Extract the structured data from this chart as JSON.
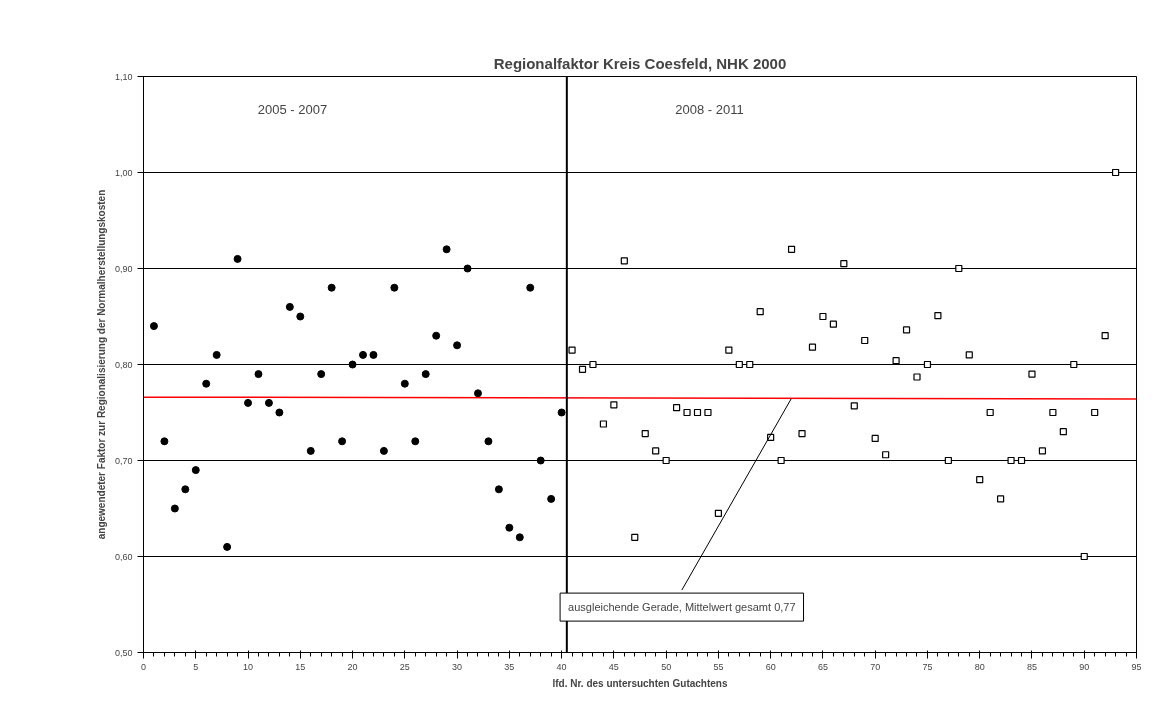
{
  "chart_data": {
    "type": "scatter",
    "title": "Regionalfaktor Kreis Coesfeld, NHK 2000",
    "xlabel": "lfd. Nr. des untersuchten Gutachtens",
    "ylabel": "angewendeter Faktor zur Regionalisierung der Normalherstellungskosten",
    "series": [
      {
        "color": "#000000",
        "marker": "circle",
        "x": [
          1,
          2,
          3,
          4,
          5,
          6,
          7,
          8,
          9,
          10,
          11,
          12,
          13,
          14,
          15,
          16,
          17,
          18,
          19,
          20,
          21,
          22,
          23,
          24,
          25,
          26,
          27,
          28,
          29,
          30,
          31,
          32,
          33,
          34,
          35,
          36,
          37,
          38,
          39,
          40
        ],
        "values": [
          0.84,
          0.72,
          0.65,
          0.67,
          0.69,
          0.78,
          0.81,
          0.61,
          0.91,
          0.76,
          0.79,
          0.76,
          0.75,
          0.86,
          0.85,
          0.71,
          0.79,
          0.88,
          0.72,
          0.8,
          0.81,
          0.81,
          0.71,
          0.88,
          0.78,
          0.72,
          0.79,
          0.83,
          0.92,
          0.82,
          0.9,
          0.77,
          0.72,
          0.67,
          0.63,
          0.62,
          0.88,
          0.7,
          0.66,
          0.75
        ]
      },
      {
        "color": "#000000",
        "marker": "square",
        "x": [
          41,
          42,
          43,
          44,
          45,
          46,
          47,
          48,
          49,
          50,
          51,
          52,
          53,
          54,
          55,
          56,
          57,
          58,
          59,
          60,
          61,
          62,
          63,
          64,
          65,
          66,
          67,
          68,
          69,
          70,
          71,
          72,
          73,
          74,
          75,
          76,
          77,
          78,
          79,
          80,
          81,
          82,
          83,
          84,
          85,
          86,
          87,
          88,
          89,
          90,
          91,
          92,
          93
        ],
        "values": [
          0.815,
          0.795,
          0.8,
          0.738,
          0.758,
          0.908,
          0.62,
          0.728,
          0.71,
          0.7,
          0.755,
          0.75,
          0.75,
          0.75,
          0.645,
          0.815,
          0.8,
          0.8,
          0.855,
          0.724,
          0.7,
          0.92,
          0.728,
          0.818,
          0.85,
          0.842,
          0.905,
          0.757,
          0.825,
          0.723,
          0.706,
          0.804,
          0.836,
          0.787,
          0.8,
          0.851,
          0.7,
          0.9,
          0.81,
          0.68,
          0.75,
          0.66,
          0.7,
          0.7,
          0.79,
          0.71,
          0.75,
          0.73,
          0.8,
          0.6,
          0.75,
          0.83,
          1.0
        ]
      },
      {
        "type": "line",
        "color": "#ff0000",
        "x": [
          0,
          95
        ],
        "values": [
          0.766,
          0.764
        ]
      }
    ],
    "ref_lines": [
      {
        "axis": "x",
        "value": 40.5,
        "color": "#000000"
      }
    ],
    "annotations": [
      "2005 - 2007",
      "2008 - 2011",
      {
        "text": "ausgleichende Gerade, Mittelwert gesamt 0,77",
        "x": 62,
        "y": 0.765
      }
    ],
    "xlim": [
      0,
      95
    ],
    "ylim": [
      0.5,
      1.1
    ],
    "xticks": [
      0,
      5,
      10,
      15,
      20,
      25,
      30,
      35,
      40,
      45,
      50,
      55,
      60,
      65,
      70,
      75,
      80,
      85,
      90,
      95
    ],
    "yticks": [
      {
        "value": 0.5,
        "label": "0,50"
      },
      {
        "value": 0.6,
        "label": "0,60"
      },
      {
        "value": 0.7,
        "label": "0,70"
      },
      {
        "value": 0.8,
        "label": "0,80"
      },
      {
        "value": 0.9,
        "label": "0,90"
      },
      {
        "value": 1.0,
        "label": "1,00"
      },
      {
        "value": 1.1,
        "label": "1,10"
      }
    ],
    "grid": "y"
  }
}
